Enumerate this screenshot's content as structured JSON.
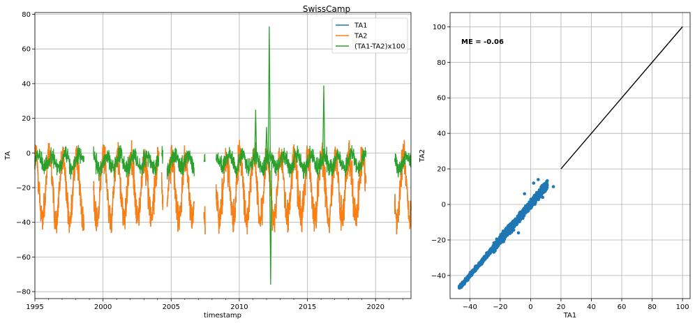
{
  "figure_title": "SwissCamp",
  "chart_data": [
    {
      "type": "line",
      "title": "SwissCamp",
      "xlabel": "timestamp",
      "ylabel": "TA",
      "xlim": [
        1995,
        2022.6
      ],
      "ylim": [
        -84,
        81
      ],
      "x_ticks": [
        "1995",
        "2000",
        "2005",
        "2010",
        "2015",
        "2020"
      ],
      "y_ticks": [
        -80,
        -60,
        -40,
        -20,
        0,
        20,
        40,
        60,
        80
      ],
      "grid": true,
      "legend": "top-right",
      "series": [
        {
          "name": "TA1",
          "color": "#1f77b4"
        },
        {
          "name": "TA2",
          "color": "#ff7f0e"
        },
        {
          "name": "(TA1-TA2)x100",
          "color": "#2ca02c"
        }
      ],
      "data_segments": [
        [
          1995.0,
          1998.6
        ],
        [
          1999.3,
          2004.1
        ],
        [
          2004.3,
          2004.4
        ],
        [
          2004.7,
          2006.7
        ],
        [
          2007.4,
          2007.5
        ],
        [
          2008.3,
          2019.3
        ],
        [
          2021.4,
          2022.6
        ]
      ],
      "diff_spikes": [
        {
          "x": 2011.2,
          "y": 25
        },
        {
          "x": 2012.2,
          "y": 73
        },
        {
          "x": 2012.3,
          "y": -76
        },
        {
          "x": 2016.2,
          "y": 39
        },
        {
          "x": 2012.0,
          "y": 15
        }
      ]
    },
    {
      "type": "scatter",
      "xlabel": "TA1",
      "ylabel": "TA2",
      "xlim": [
        -53,
        105
      ],
      "ylim": [
        -53,
        108
      ],
      "x_ticks": [
        -40,
        -20,
        0,
        20,
        40,
        60,
        80,
        100
      ],
      "y_ticks": [
        -40,
        -20,
        0,
        20,
        40,
        60,
        80,
        100
      ],
      "grid": true,
      "color": "#1f77b4",
      "annotation": "ME = -0.06",
      "points_range": {
        "x": [
          -47,
          15
        ],
        "y": [
          -47,
          15
        ]
      },
      "reference_line": {
        "from": [
          20,
          20
        ],
        "to": [
          100,
          100
        ],
        "color": "#000000"
      }
    }
  ]
}
